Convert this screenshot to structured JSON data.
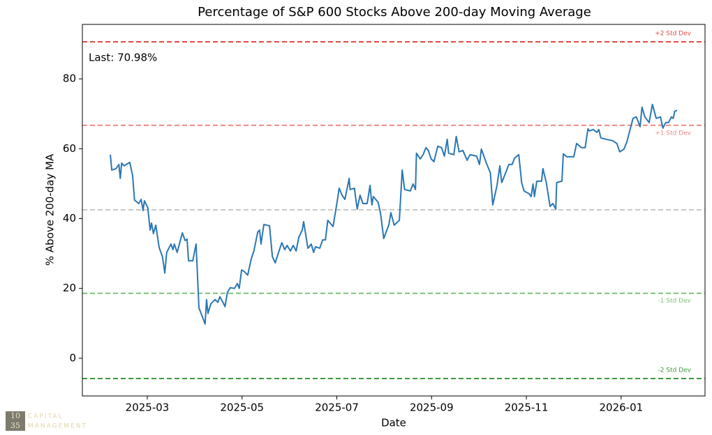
{
  "chart_data": {
    "type": "line",
    "title": "Percentage of S&P 600 Stocks Above 200-day Moving Average",
    "x_label": "Date",
    "y_label": "% Above 200-day MA",
    "annotation": "Last: 70.98%",
    "xlim": [
      0.63,
      13.77
    ],
    "ylim": [
      -10.8,
      95.6
    ],
    "xticks": [
      {
        "value": 2,
        "label": "2025-03"
      },
      {
        "value": 4,
        "label": "2025-05"
      },
      {
        "value": 6,
        "label": "2025-07"
      },
      {
        "value": 8,
        "label": "2025-09"
      },
      {
        "value": 10,
        "label": "2025-11"
      },
      {
        "value": 12,
        "label": "2026-01"
      }
    ],
    "yticks": [
      0,
      20,
      40,
      60,
      80
    ],
    "reference_lines": [
      {
        "value": 90.6,
        "label": "+2 Std Dev",
        "color": "#e04a45"
      },
      {
        "value": 66.7,
        "label": "+1 Std Dev",
        "color": "#ee8886"
      },
      {
        "value": 42.5,
        "color": "#c8c8c8"
      },
      {
        "value": 18.6,
        "label": "-1 Std Dev",
        "color": "#7cc47a"
      },
      {
        "value": -5.8,
        "label": "-2 Std Dev",
        "color": "#3d9a3a"
      }
    ],
    "series": [
      {
        "name": "% Above 200-day MA",
        "color": "#2a77b4",
        "x": [
          1.22,
          1.25,
          1.34,
          1.4,
          1.43,
          1.46,
          1.51,
          1.63,
          1.69,
          1.73,
          1.82,
          1.87,
          1.91,
          1.94,
          2.01,
          2.06,
          2.09,
          2.13,
          2.18,
          2.25,
          2.32,
          2.37,
          2.41,
          2.5,
          2.54,
          2.57,
          2.63,
          2.74,
          2.8,
          2.84,
          2.87,
          2.96,
          3.0,
          3.03,
          3.09,
          3.16,
          3.22,
          3.25,
          3.28,
          3.34,
          3.43,
          3.49,
          3.53,
          3.59,
          3.64,
          3.69,
          3.75,
          3.84,
          3.9,
          3.94,
          3.99,
          4.05,
          4.12,
          4.19,
          4.25,
          4.33,
          4.37,
          4.4,
          4.46,
          4.58,
          4.64,
          4.7,
          4.78,
          4.84,
          4.9,
          4.95,
          5.02,
          5.08,
          5.14,
          5.2,
          5.27,
          5.3,
          5.39,
          5.46,
          5.51,
          5.55,
          5.64,
          5.7,
          5.76,
          5.81,
          5.92,
          6.01,
          6.05,
          6.11,
          6.17,
          6.26,
          6.28,
          6.37,
          6.43,
          6.49,
          6.55,
          6.64,
          6.7,
          6.74,
          6.77,
          6.87,
          6.92,
          6.99,
          7.1,
          7.14,
          7.21,
          7.32,
          7.38,
          7.43,
          7.55,
          7.61,
          7.66,
          7.68,
          7.76,
          7.82,
          7.88,
          7.93,
          7.99,
          8.05,
          8.13,
          8.21,
          8.27,
          8.33,
          8.36,
          8.47,
          8.52,
          8.58,
          8.66,
          8.75,
          8.81,
          8.95,
          9.01,
          9.05,
          9.16,
          9.24,
          9.29,
          9.38,
          9.44,
          9.48,
          9.54,
          9.63,
          9.7,
          9.75,
          9.84,
          9.9,
          9.95,
          10.06,
          10.1,
          10.14,
          10.17,
          10.22,
          10.32,
          10.35,
          10.42,
          10.5,
          10.56,
          10.62,
          10.64,
          10.75,
          10.78,
          10.85,
          11.0,
          11.06,
          11.16,
          11.24,
          11.3,
          11.33,
          11.41,
          11.49,
          11.53,
          11.57,
          11.68,
          11.82,
          11.91,
          11.97,
          12.06,
          12.12,
          12.19,
          12.25,
          12.32,
          12.4,
          12.44,
          12.5,
          12.59,
          12.66,
          12.74,
          12.83,
          12.88,
          12.94,
          13.0,
          13.06,
          13.1,
          13.13,
          13.18
        ],
        "values": [
          58.3,
          53.9,
          54.3,
          55.5,
          51.5,
          55.9,
          55.1,
          56.1,
          52.3,
          45.3,
          44.3,
          45.5,
          42.3,
          45.1,
          43.1,
          36.7,
          38.7,
          35.7,
          38.1,
          31.7,
          29.1,
          24.4,
          30.3,
          32.7,
          31.1,
          32.7,
          30.3,
          35.9,
          33.7,
          34.1,
          27.9,
          27.9,
          30.7,
          32.7,
          14.4,
          12.0,
          9.8,
          16.8,
          12.8,
          15.6,
          16.8,
          16.0,
          17.6,
          16.2,
          14.8,
          18.8,
          20.2,
          20.0,
          21.4,
          20.0,
          25.3,
          24.8,
          23.8,
          28.3,
          30.7,
          36.1,
          36.7,
          32.7,
          38.3,
          37.9,
          29.1,
          27.3,
          30.7,
          33.1,
          31.1,
          32.3,
          30.7,
          32.3,
          30.7,
          34.7,
          36.7,
          39.1,
          31.5,
          32.7,
          30.3,
          31.9,
          31.5,
          33.9,
          33.9,
          39.5,
          37.7,
          45.1,
          48.7,
          46.7,
          45.5,
          51.5,
          48.3,
          48.7,
          42.7,
          46.7,
          44.3,
          44.3,
          49.5,
          43.9,
          46.3,
          44.7,
          41.7,
          34.3,
          38.3,
          41.7,
          38.1,
          39.5,
          53.9,
          48.3,
          47.9,
          49.9,
          48.3,
          58.7,
          57.1,
          58.3,
          60.3,
          59.5,
          57.1,
          56.3,
          60.7,
          60.3,
          57.9,
          62.7,
          58.7,
          58.3,
          63.5,
          59.1,
          59.5,
          56.7,
          58.3,
          57.9,
          55.5,
          59.9,
          55.7,
          53.1,
          43.9,
          49.5,
          55.1,
          50.3,
          52.3,
          55.5,
          55.5,
          57.3,
          58.3,
          50.3,
          47.9,
          47.1,
          46.3,
          49.9,
          46.3,
          50.7,
          50.7,
          54.3,
          50.3,
          43.5,
          44.3,
          42.7,
          50.3,
          50.7,
          58.5,
          57.7,
          57.7,
          61.5,
          60.3,
          60.3,
          65.7,
          65.1,
          65.5,
          64.7,
          65.5,
          63.1,
          62.7,
          62.3,
          61.5,
          59.1,
          59.9,
          61.9,
          65.5,
          68.7,
          69.1,
          66.3,
          71.9,
          69.1,
          67.5,
          72.7,
          68.7,
          69.1,
          65.9,
          67.5,
          67.5,
          69.1,
          68.7,
          70.7,
          70.98
        ]
      }
    ]
  },
  "watermark": {
    "logo_top": "10",
    "logo_bottom": "35",
    "line1": "CAPITAL",
    "line2": "MANAGEMENT"
  }
}
